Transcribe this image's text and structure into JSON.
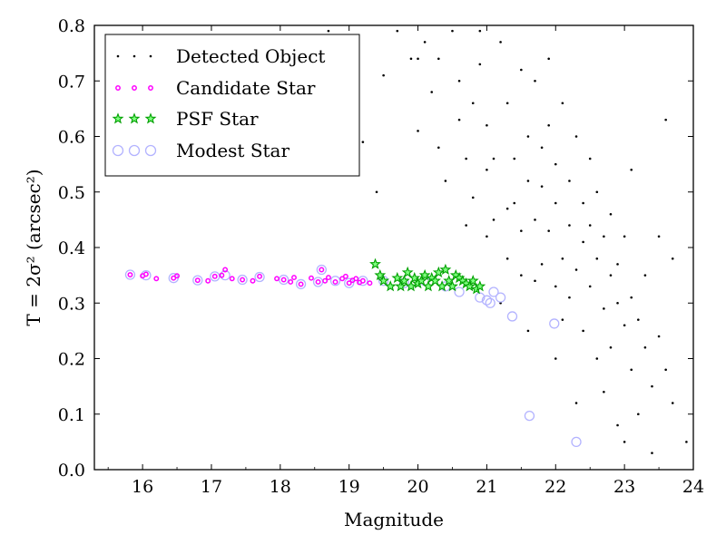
{
  "chart_data": {
    "type": "scatter",
    "xlabel": "Magnitude",
    "ylabel": "T = 2σ² (arcsec²)",
    "xlim": [
      15.3,
      24
    ],
    "ylim": [
      0.0,
      0.8
    ],
    "xticks": [
      "16",
      "17",
      "18",
      "19",
      "20",
      "21",
      "22",
      "23",
      "24"
    ],
    "yticks": [
      "0.0",
      "0.1",
      "0.2",
      "0.3",
      "0.4",
      "0.5",
      "0.6",
      "0.7",
      "0.8"
    ],
    "legend_position": "top-left",
    "grid": false,
    "series": [
      {
        "name": "Detected Object",
        "marker": "dot",
        "color": "#000000",
        "points": [
          [
            18.7,
            0.79
          ],
          [
            19.1,
            0.78
          ],
          [
            19.2,
            0.59
          ],
          [
            19.4,
            0.5
          ],
          [
            19.5,
            0.71
          ],
          [
            19.7,
            0.79
          ],
          [
            19.9,
            0.74
          ],
          [
            20.0,
            0.61
          ],
          [
            20.0,
            0.74
          ],
          [
            20.1,
            0.77
          ],
          [
            20.2,
            0.68
          ],
          [
            20.3,
            0.58
          ],
          [
            20.3,
            0.74
          ],
          [
            20.4,
            0.52
          ],
          [
            20.5,
            0.79
          ],
          [
            20.6,
            0.7
          ],
          [
            20.6,
            0.63
          ],
          [
            20.7,
            0.44
          ],
          [
            20.7,
            0.56
          ],
          [
            20.8,
            0.49
          ],
          [
            20.8,
            0.66
          ],
          [
            20.9,
            0.73
          ],
          [
            20.9,
            0.79
          ],
          [
            21.0,
            0.42
          ],
          [
            21.0,
            0.54
          ],
          [
            21.0,
            0.62
          ],
          [
            21.1,
            0.45
          ],
          [
            21.1,
            0.56
          ],
          [
            21.2,
            0.77
          ],
          [
            21.3,
            0.47
          ],
          [
            21.3,
            0.66
          ],
          [
            21.3,
            0.38
          ],
          [
            21.4,
            0.48
          ],
          [
            21.4,
            0.56
          ],
          [
            21.5,
            0.35
          ],
          [
            21.5,
            0.72
          ],
          [
            21.5,
            0.43
          ],
          [
            21.6,
            0.52
          ],
          [
            21.6,
            0.6
          ],
          [
            21.7,
            0.34
          ],
          [
            21.7,
            0.45
          ],
          [
            21.7,
            0.7
          ],
          [
            21.8,
            0.51
          ],
          [
            21.8,
            0.58
          ],
          [
            21.8,
            0.37
          ],
          [
            21.9,
            0.74
          ],
          [
            21.9,
            0.43
          ],
          [
            21.9,
            0.62
          ],
          [
            22.0,
            0.2
          ],
          [
            22.0,
            0.33
          ],
          [
            22.0,
            0.48
          ],
          [
            22.0,
            0.55
          ],
          [
            22.1,
            0.38
          ],
          [
            22.1,
            0.66
          ],
          [
            22.1,
            0.27
          ],
          [
            22.2,
            0.44
          ],
          [
            22.2,
            0.52
          ],
          [
            22.2,
            0.31
          ],
          [
            22.3,
            0.6
          ],
          [
            22.3,
            0.36
          ],
          [
            22.3,
            0.12
          ],
          [
            22.4,
            0.48
          ],
          [
            22.4,
            0.25
          ],
          [
            22.4,
            0.41
          ],
          [
            22.5,
            0.56
          ],
          [
            22.5,
            0.33
          ],
          [
            22.5,
            0.44
          ],
          [
            22.6,
            0.2
          ],
          [
            22.6,
            0.38
          ],
          [
            22.6,
            0.5
          ],
          [
            22.7,
            0.29
          ],
          [
            22.7,
            0.42
          ],
          [
            22.7,
            0.14
          ],
          [
            22.8,
            0.35
          ],
          [
            22.8,
            0.22
          ],
          [
            22.8,
            0.46
          ],
          [
            22.9,
            0.3
          ],
          [
            22.9,
            0.08
          ],
          [
            22.9,
            0.37
          ],
          [
            23.0,
            0.26
          ],
          [
            23.0,
            0.42
          ],
          [
            23.0,
            0.05
          ],
          [
            23.1,
            0.31
          ],
          [
            23.1,
            0.18
          ],
          [
            23.1,
            0.54
          ],
          [
            23.2,
            0.27
          ],
          [
            23.2,
            0.1
          ],
          [
            23.3,
            0.22
          ],
          [
            23.3,
            0.35
          ],
          [
            23.4,
            0.15
          ],
          [
            23.4,
            0.03
          ],
          [
            23.5,
            0.24
          ],
          [
            23.5,
            0.42
          ],
          [
            23.6,
            0.63
          ],
          [
            23.6,
            0.18
          ],
          [
            23.7,
            0.38
          ],
          [
            23.7,
            0.12
          ],
          [
            23.9,
            0.05
          ],
          [
            21.2,
            0.3
          ],
          [
            21.6,
            0.25
          ]
        ]
      },
      {
        "name": "Candidate Star",
        "marker": "circle-small",
        "color": "#ff00ff",
        "points": [
          [
            15.82,
            0.351
          ],
          [
            16.0,
            0.349
          ],
          [
            16.05,
            0.352
          ],
          [
            16.2,
            0.344
          ],
          [
            16.45,
            0.345
          ],
          [
            16.5,
            0.349
          ],
          [
            16.8,
            0.341
          ],
          [
            16.95,
            0.34
          ],
          [
            17.05,
            0.348
          ],
          [
            17.15,
            0.35
          ],
          [
            17.2,
            0.36
          ],
          [
            17.3,
            0.344
          ],
          [
            17.45,
            0.342
          ],
          [
            17.6,
            0.34
          ],
          [
            17.7,
            0.348
          ],
          [
            17.95,
            0.344
          ],
          [
            18.05,
            0.342
          ],
          [
            18.15,
            0.338
          ],
          [
            18.2,
            0.346
          ],
          [
            18.3,
            0.334
          ],
          [
            18.45,
            0.345
          ],
          [
            18.55,
            0.338
          ],
          [
            18.6,
            0.36
          ],
          [
            18.65,
            0.34
          ],
          [
            18.7,
            0.346
          ],
          [
            18.8,
            0.338
          ],
          [
            18.9,
            0.344
          ],
          [
            18.95,
            0.348
          ],
          [
            19.0,
            0.336
          ],
          [
            19.05,
            0.341
          ],
          [
            19.1,
            0.344
          ],
          [
            19.15,
            0.337
          ],
          [
            19.2,
            0.34
          ],
          [
            19.3,
            0.336
          ]
        ]
      },
      {
        "name": "PSF Star",
        "marker": "star",
        "color": "#00a000",
        "points": [
          [
            19.38,
            0.37
          ],
          [
            19.45,
            0.35
          ],
          [
            19.5,
            0.34
          ],
          [
            19.6,
            0.33
          ],
          [
            19.7,
            0.345
          ],
          [
            19.75,
            0.33
          ],
          [
            19.8,
            0.34
          ],
          [
            19.85,
            0.355
          ],
          [
            19.9,
            0.33
          ],
          [
            19.95,
            0.345
          ],
          [
            20.0,
            0.335
          ],
          [
            20.05,
            0.34
          ],
          [
            20.1,
            0.35
          ],
          [
            20.15,
            0.33
          ],
          [
            20.2,
            0.345
          ],
          [
            20.25,
            0.34
          ],
          [
            20.3,
            0.355
          ],
          [
            20.35,
            0.33
          ],
          [
            20.4,
            0.36
          ],
          [
            20.45,
            0.34
          ],
          [
            20.5,
            0.33
          ],
          [
            20.55,
            0.35
          ],
          [
            20.6,
            0.345
          ],
          [
            20.65,
            0.34
          ],
          [
            20.7,
            0.335
          ],
          [
            20.75,
            0.33
          ],
          [
            20.8,
            0.34
          ],
          [
            20.85,
            0.325
          ],
          [
            20.9,
            0.33
          ]
        ]
      },
      {
        "name": "Modest Star",
        "marker": "circle-large",
        "color": "#b3b3ff",
        "points": [
          [
            15.82,
            0.351
          ],
          [
            16.05,
            0.35
          ],
          [
            16.45,
            0.345
          ],
          [
            16.8,
            0.341
          ],
          [
            17.05,
            0.348
          ],
          [
            17.2,
            0.35
          ],
          [
            17.45,
            0.342
          ],
          [
            17.7,
            0.347
          ],
          [
            18.05,
            0.342
          ],
          [
            18.3,
            0.334
          ],
          [
            18.55,
            0.338
          ],
          [
            18.6,
            0.36
          ],
          [
            18.8,
            0.34
          ],
          [
            19.0,
            0.336
          ],
          [
            19.2,
            0.34
          ],
          [
            19.5,
            0.34
          ],
          [
            19.8,
            0.336
          ],
          [
            20.1,
            0.34
          ],
          [
            20.4,
            0.33
          ],
          [
            20.6,
            0.32
          ],
          [
            20.9,
            0.31
          ],
          [
            21.0,
            0.305
          ],
          [
            21.05,
            0.3
          ],
          [
            21.1,
            0.32
          ],
          [
            21.2,
            0.31
          ],
          [
            21.37,
            0.276
          ],
          [
            21.62,
            0.097
          ],
          [
            21.98,
            0.263
          ],
          [
            22.3,
            0.05
          ]
        ]
      }
    ]
  }
}
